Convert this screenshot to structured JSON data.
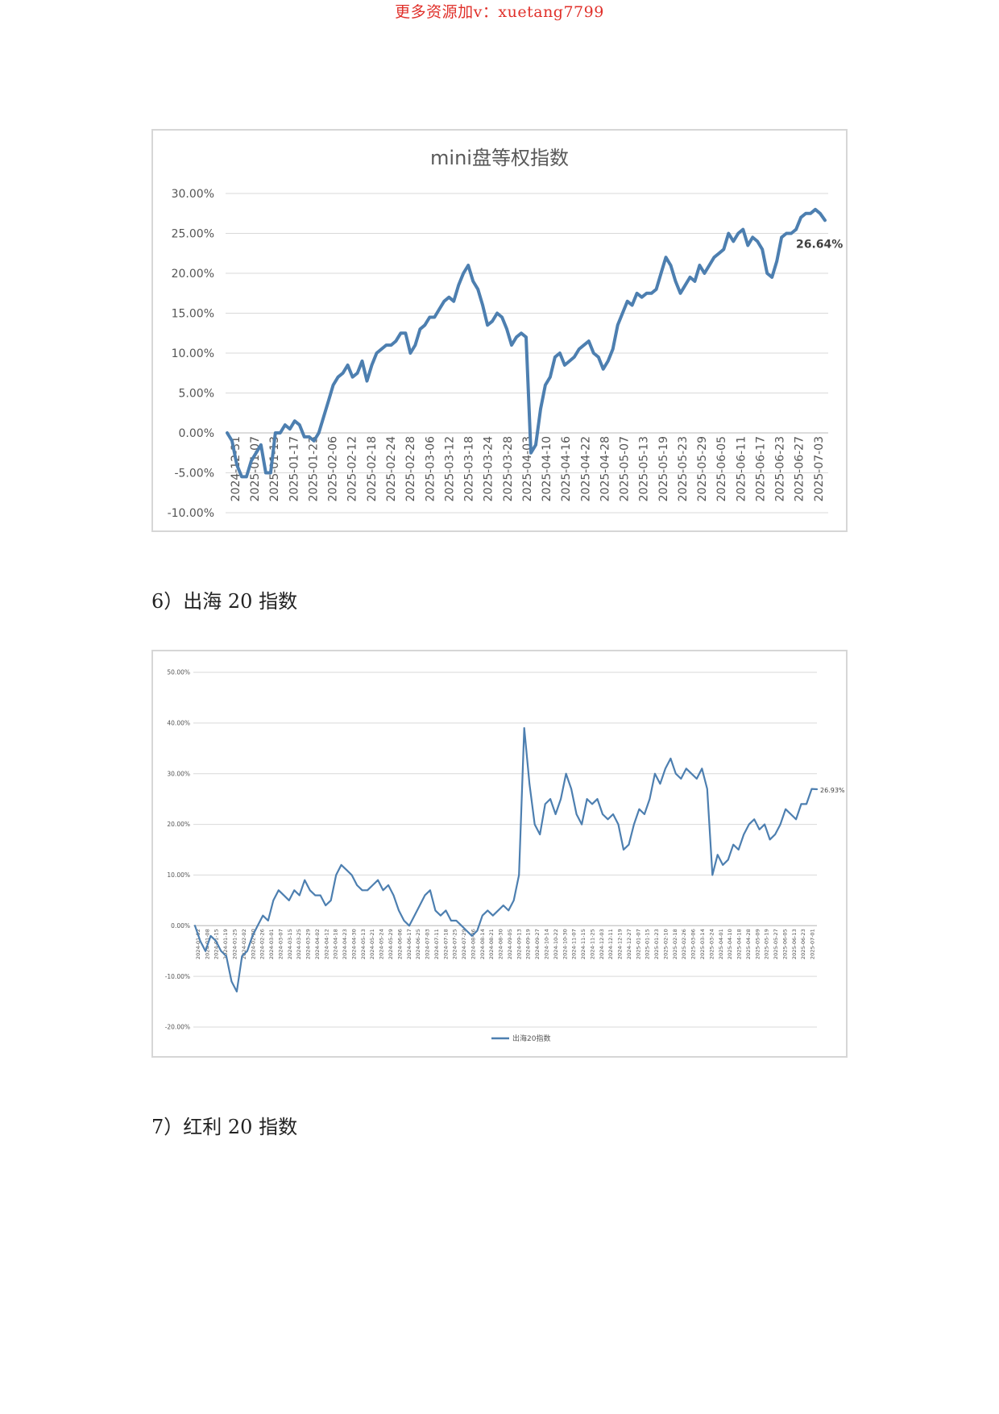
{
  "watermark": {
    "text": "更多资源加v：xuetang7799",
    "color": "#e0302a"
  },
  "headings": {
    "h6": "6）出海 20 指数",
    "h7": "7）红利 20 指数"
  },
  "colors": {
    "line": "#4d7fb0",
    "grid": "#d9d9d9",
    "axis_text": "#555555"
  },
  "chart_data": [
    {
      "type": "line",
      "title": "mini盘等权指数",
      "ylim": [
        -10,
        30
      ],
      "y_ticks": [
        "30.00%",
        "25.00%",
        "20.00%",
        "15.00%",
        "10.00%",
        "5.00%",
        "0.00%",
        "-5.00%",
        "-10.00%"
      ],
      "x_tick_labels": [
        "2024-12-31",
        "2025-01-07",
        "2025-01-13",
        "2025-01-17",
        "2025-01-23",
        "2025-02-06",
        "2025-02-12",
        "2025-02-18",
        "2025-02-24",
        "2025-02-28",
        "2025-03-06",
        "2025-03-12",
        "2025-03-18",
        "2025-03-24",
        "2025-03-28",
        "2025-04-03",
        "2025-04-10",
        "2025-04-16",
        "2025-04-22",
        "2025-04-28",
        "2025-05-07",
        "2025-05-13",
        "2025-05-19",
        "2025-05-23",
        "2025-05-29",
        "2025-06-05",
        "2025-06-11",
        "2025-06-17",
        "2025-06-23",
        "2025-06-27",
        "2025-07-03"
      ],
      "series": [
        {
          "values": [
            0,
            -1,
            -4,
            -5.5,
            -5.5,
            -3.5,
            -2.5,
            -1.5,
            -5,
            -5,
            0,
            0,
            1,
            0.5,
            1.5,
            1,
            -0.5,
            -0.5,
            -1,
            0,
            2,
            4,
            6,
            7,
            7.5,
            8.5,
            7,
            7.5,
            9,
            6.5,
            8.5,
            10,
            10.5,
            11,
            11,
            11.5,
            12.5,
            12.5,
            10,
            11,
            13,
            13.5,
            14.5,
            14.5,
            15.5,
            16.5,
            17,
            16.5,
            18.5,
            20,
            21,
            19,
            18,
            16,
            13.5,
            14,
            15,
            14.5,
            13,
            11,
            12,
            12.5,
            12,
            -2.5,
            -1.5,
            3,
            6,
            7,
            9.5,
            10,
            8.5,
            9,
            9.5,
            10.5,
            11,
            11.5,
            10,
            9.5,
            8,
            9,
            10.5,
            13.5,
            15,
            16.5,
            16,
            17.5,
            17,
            17.5,
            17.5,
            18,
            20,
            22,
            21,
            19,
            17.5,
            18.5,
            19.5,
            19,
            21,
            20,
            21,
            22,
            22.5,
            23,
            25,
            24,
            25,
            25.5,
            23.5,
            24.5,
            24,
            23,
            20,
            19.5,
            21.5,
            24.5,
            25,
            25,
            25.5,
            27,
            27.5,
            27.5,
            28,
            27.5,
            26.64
          ]
        }
      ],
      "end_label": "26.64%"
    },
    {
      "type": "line",
      "ylim": [
        -20,
        50
      ],
      "y_ticks": [
        "50.00%",
        "40.00%",
        "30.00%",
        "20.00%",
        "10.00%",
        "0.00%",
        "-10.00%",
        "-20.00%"
      ],
      "x_tick_labels": [
        "2024-01-02",
        "2024-01-08",
        "2024-01-15",
        "2024-01-19",
        "2024-01-25",
        "2024-02-02",
        "2024-02-20",
        "2024-02-26",
        "2024-03-01",
        "2024-03-07",
        "2024-03-15",
        "2024-03-25",
        "2024-03-29",
        "2024-04-02",
        "2024-04-12",
        "2024-04-18",
        "2024-04-23",
        "2024-04-30",
        "2024-05-13",
        "2024-05-21",
        "2024-05-24",
        "2024-05-29",
        "2024-06-06",
        "2024-06-17",
        "2024-06-25",
        "2024-07-03",
        "2024-07-11",
        "2024-07-18",
        "2024-07-25",
        "2024-07-29",
        "2024-08-06",
        "2024-08-14",
        "2024-08-21",
        "2024-08-30",
        "2024-09-05",
        "2024-09-13",
        "2024-09-19",
        "2024-09-27",
        "2024-10-14",
        "2024-10-22",
        "2024-10-30",
        "2024-11-07",
        "2024-11-15",
        "2024-11-25",
        "2024-12-03",
        "2024-12-11",
        "2024-12-19",
        "2024-12-27",
        "2025-01-07",
        "2025-01-15",
        "2025-01-23",
        "2025-02-10",
        "2025-02-18",
        "2025-02-26",
        "2025-03-06",
        "2025-03-14",
        "2025-03-24",
        "2025-04-01",
        "2025-04-10",
        "2025-04-18",
        "2025-04-28",
        "2025-05-09",
        "2025-05-19",
        "2025-05-27",
        "2025-06-05",
        "2025-06-13",
        "2025-06-23",
        "2025-07-01"
      ],
      "series": [
        {
          "name": "出海20指数",
          "values": [
            0,
            -3,
            -5,
            -2,
            -3,
            -5,
            -6,
            -11,
            -13,
            -6,
            -5,
            -2,
            0,
            2,
            1,
            5,
            7,
            6,
            5,
            7,
            6,
            9,
            7,
            6,
            6,
            4,
            5,
            10,
            12,
            11,
            10,
            8,
            7,
            7,
            8,
            9,
            7,
            8,
            6,
            3,
            1,
            0,
            2,
            4,
            6,
            7,
            3,
            2,
            3,
            1,
            1,
            0,
            -1,
            -2,
            -1,
            2,
            3,
            2,
            3,
            4,
            3,
            5,
            10,
            39,
            28,
            20,
            18,
            24,
            25,
            22,
            25,
            30,
            27,
            22,
            20,
            25,
            24,
            25,
            22,
            21,
            22,
            20,
            15,
            16,
            20,
            23,
            22,
            25,
            30,
            28,
            31,
            33,
            30,
            29,
            31,
            30,
            29,
            31,
            27,
            10,
            14,
            12,
            13,
            16,
            15,
            18,
            20,
            21,
            19,
            20,
            17,
            18,
            20,
            23,
            22,
            21,
            24,
            24,
            27,
            26.93
          ]
        }
      ],
      "end_label": "26.93%",
      "legend": {
        "position": "bottom"
      }
    }
  ]
}
